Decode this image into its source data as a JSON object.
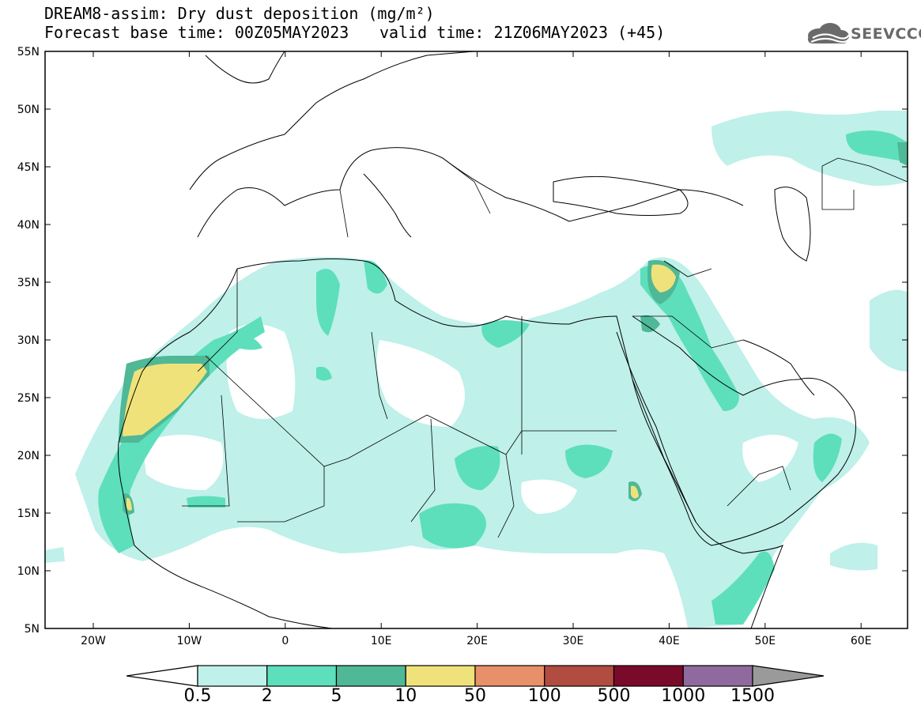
{
  "header": {
    "title": "DREAM8-assim: Dry dust deposition (mg/m²)",
    "base_time": "Forecast base time: 00Z05MAY2023",
    "valid_time": "valid time: 21Z06MAY2023 (+45)"
  },
  "logo": {
    "text": "SEEVCCC",
    "icon": "cloud-icon"
  },
  "axes": {
    "lat_ticks": [
      "55N",
      "50N",
      "45N",
      "40N",
      "35N",
      "30N",
      "25N",
      "20N",
      "15N",
      "10N",
      "5N"
    ],
    "lon_ticks": [
      "20W",
      "10W",
      "0",
      "10E",
      "20E",
      "30E",
      "40E",
      "50E",
      "60E"
    ]
  },
  "legend": {
    "labels": [
      "0.5",
      "2",
      "5",
      "10",
      "50",
      "100",
      "500",
      "1000",
      "1500"
    ],
    "colors": [
      "#bff0ea",
      "#5ddfbb",
      "#4fb896",
      "#f0e27a",
      "#e8906a",
      "#b04c40",
      "#7a0a2a",
      "#8f6a9e"
    ]
  }
}
